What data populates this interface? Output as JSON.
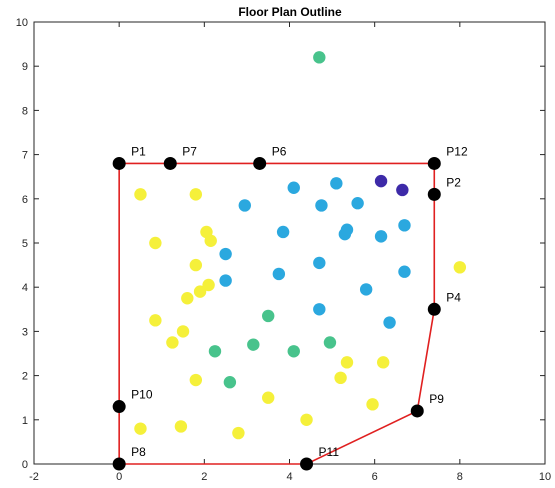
{
  "chart_data": {
    "type": "scatter",
    "title": "Floor Plan Outline",
    "xlabel": "",
    "ylabel": "",
    "xlim": [
      -2,
      10
    ],
    "ylim": [
      0,
      10
    ],
    "xticks": [
      -2,
      0,
      2,
      4,
      6,
      8,
      10
    ],
    "yticks": [
      0,
      1,
      2,
      3,
      4,
      5,
      6,
      7,
      8,
      9,
      10
    ],
    "grid": false,
    "outline": {
      "color": "#e02020",
      "order": [
        "P8",
        "P1",
        "P12",
        "P2",
        "P4",
        "P9",
        "P11",
        "P8"
      ]
    },
    "vertices": [
      {
        "name": "P1",
        "x": 0.0,
        "y": 6.8
      },
      {
        "name": "P7",
        "x": 1.2,
        "y": 6.8
      },
      {
        "name": "P6",
        "x": 3.3,
        "y": 6.8
      },
      {
        "name": "P12",
        "x": 7.4,
        "y": 6.8
      },
      {
        "name": "P2",
        "x": 7.4,
        "y": 6.1
      },
      {
        "name": "P4",
        "x": 7.4,
        "y": 3.5
      },
      {
        "name": "P9",
        "x": 7.0,
        "y": 1.2
      },
      {
        "name": "P11",
        "x": 4.4,
        "y": 0.0
      },
      {
        "name": "P8",
        "x": 0.0,
        "y": 0.0
      },
      {
        "name": "P10",
        "x": 0.0,
        "y": 1.3
      }
    ],
    "series": [
      {
        "color": "#f5f03a",
        "points": [
          [
            0.5,
            6.1
          ],
          [
            1.8,
            6.1
          ],
          [
            0.85,
            5.0
          ],
          [
            2.05,
            5.25
          ],
          [
            2.15,
            5.05
          ],
          [
            1.8,
            4.5
          ],
          [
            1.6,
            3.75
          ],
          [
            1.9,
            3.9
          ],
          [
            2.1,
            4.05
          ],
          [
            0.85,
            3.25
          ],
          [
            1.5,
            3.0
          ],
          [
            1.25,
            2.75
          ],
          [
            1.8,
            1.9
          ],
          [
            0.5,
            0.8
          ],
          [
            1.45,
            0.85
          ],
          [
            2.8,
            0.7
          ],
          [
            3.5,
            1.5
          ],
          [
            4.4,
            1.0
          ],
          [
            5.2,
            1.95
          ],
          [
            5.35,
            2.3
          ],
          [
            6.2,
            2.3
          ],
          [
            5.95,
            1.35
          ],
          [
            8.0,
            4.45
          ]
        ]
      },
      {
        "color": "#48c38c",
        "points": [
          [
            4.7,
            9.2
          ],
          [
            3.5,
            3.35
          ],
          [
            2.25,
            2.55
          ],
          [
            3.15,
            2.7
          ],
          [
            4.1,
            2.55
          ],
          [
            4.95,
            2.75
          ],
          [
            2.6,
            1.85
          ]
        ]
      },
      {
        "color": "#2ba8df",
        "points": [
          [
            2.95,
            5.85
          ],
          [
            4.1,
            6.25
          ],
          [
            4.75,
            5.85
          ],
          [
            5.1,
            6.35
          ],
          [
            5.6,
            5.9
          ],
          [
            5.3,
            5.2
          ],
          [
            5.35,
            5.3
          ],
          [
            6.15,
            5.15
          ],
          [
            6.7,
            5.4
          ],
          [
            3.85,
            5.25
          ],
          [
            2.5,
            4.75
          ],
          [
            4.7,
            4.55
          ],
          [
            3.75,
            4.3
          ],
          [
            2.5,
            4.15
          ],
          [
            5.8,
            3.95
          ],
          [
            6.7,
            4.35
          ],
          [
            4.7,
            3.5
          ],
          [
            6.35,
            3.2
          ]
        ]
      },
      {
        "color": "#3d2aa8",
        "points": [
          [
            6.15,
            6.4
          ],
          [
            6.65,
            6.2
          ]
        ]
      }
    ]
  }
}
